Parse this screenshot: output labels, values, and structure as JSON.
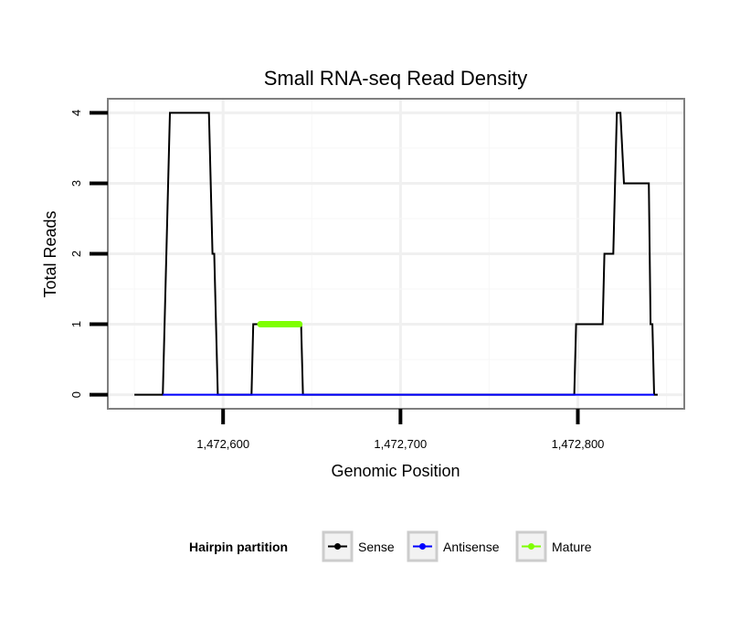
{
  "chart_data": {
    "type": "line",
    "title": "Small RNA-seq Read Density",
    "xlabel": "Genomic Position",
    "ylabel": "Total Reads",
    "xlim": [
      1472535,
      1472860
    ],
    "ylim": [
      -0.2,
      4.2
    ],
    "x_ticks": [
      {
        "value": 1472600,
        "label": "1,472,600"
      },
      {
        "value": 1472700,
        "label": "1,472,700"
      },
      {
        "value": 1472800,
        "label": "1,472,800"
      }
    ],
    "y_ticks": [
      {
        "value": 0,
        "label": "0"
      },
      {
        "value": 1,
        "label": "1"
      },
      {
        "value": 2,
        "label": "2"
      },
      {
        "value": 3,
        "label": "3"
      },
      {
        "value": 4,
        "label": "4"
      }
    ],
    "grid": true,
    "legend": {
      "title": "Hairpin partition",
      "position": "bottom"
    },
    "series": [
      {
        "name": "Sense",
        "color": "#000000",
        "points": [
          [
            1472550,
            0
          ],
          [
            1472566,
            0
          ],
          [
            1472568,
            2
          ],
          [
            1472570,
            4
          ],
          [
            1472592,
            4
          ],
          [
            1472594,
            2
          ],
          [
            1472595,
            2
          ],
          [
            1472597,
            0
          ],
          [
            1472616,
            0
          ],
          [
            1472617,
            1
          ],
          [
            1472644,
            1
          ],
          [
            1472645,
            0
          ],
          [
            1472798,
            0
          ],
          [
            1472799,
            1
          ],
          [
            1472814,
            1
          ],
          [
            1472815,
            2
          ],
          [
            1472820,
            2
          ],
          [
            1472822,
            4
          ],
          [
            1472824,
            4
          ],
          [
            1472826,
            3
          ],
          [
            1472840,
            3
          ],
          [
            1472841,
            1
          ],
          [
            1472842,
            1
          ],
          [
            1472843,
            0
          ],
          [
            1472845,
            0
          ]
        ]
      },
      {
        "name": "Antisense",
        "color": "#0000ff",
        "points": [
          [
            1472566,
            0
          ],
          [
            1472596,
            0
          ],
          [
            1472616,
            0
          ],
          [
            1472645,
            0
          ],
          [
            1472798,
            0
          ],
          [
            1472843,
            0
          ]
        ]
      },
      {
        "name": "Mature",
        "color": "#7fff00",
        "points": [
          [
            1472621,
            1
          ],
          [
            1472643,
            1
          ]
        ]
      }
    ]
  }
}
